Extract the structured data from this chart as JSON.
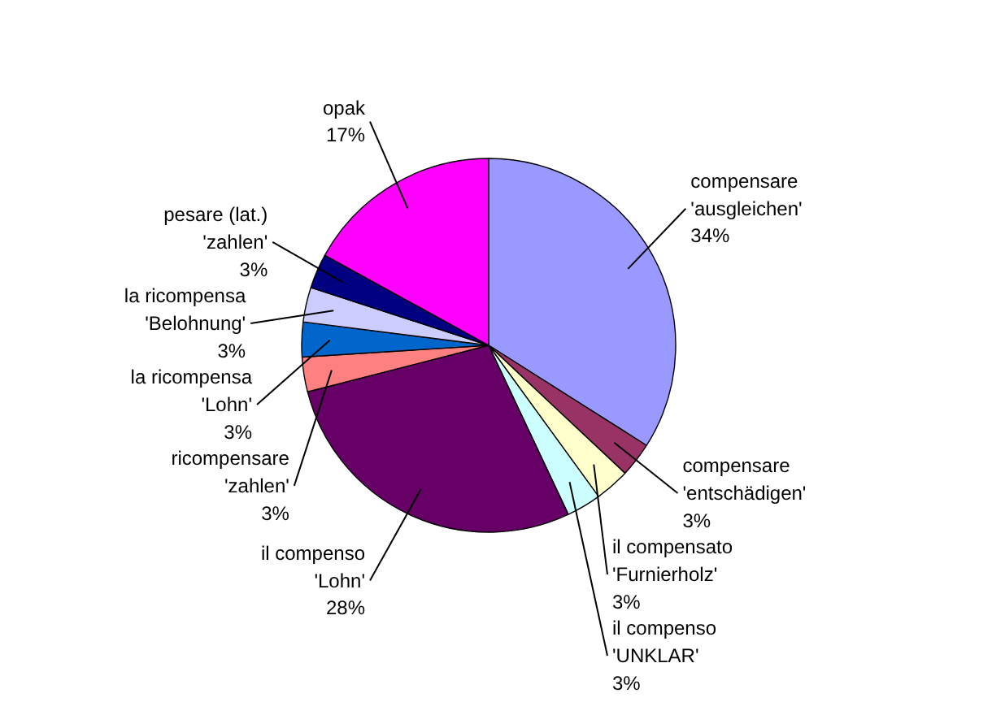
{
  "chart_data": {
    "type": "pie",
    "categories": [
      "compensare\n'ausgleichen'",
      "compensare\n'entschädigen'",
      "il compensato\n'Furnierholz'",
      "il compenso\n'UNKLAR'",
      "il compenso\n'Lohn'",
      "ricompensare\n'zahlen'",
      "la ricompensa\n'Lohn'",
      "la ricompensa\n'Belohnung'",
      "pesare (lat.)\n'zahlen'",
      "opak"
    ],
    "values": [
      34,
      3,
      3,
      3,
      28,
      3,
      3,
      3,
      3,
      17
    ],
    "value_labels": [
      "34%",
      "3%",
      "3%",
      "3%",
      "28%",
      "3%",
      "3%",
      "3%",
      "3%",
      "17%"
    ],
    "colors": [
      "#9999ff",
      "#993366",
      "#ffffcc",
      "#ccffff",
      "#660066",
      "#ff8080",
      "#0066cc",
      "#ccccff",
      "#000080",
      "#ff00ff"
    ]
  }
}
